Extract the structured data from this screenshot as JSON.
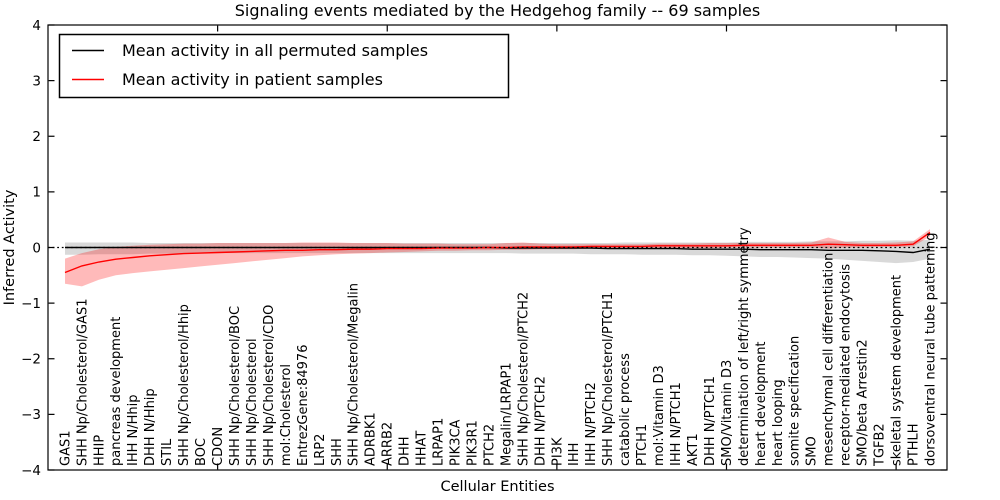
{
  "chart_data": {
    "type": "line",
    "title": "Signaling events mediated by the Hedgehog family -- 69 samples",
    "xlabel": "Cellular Entities",
    "ylabel": "Inferred Activity",
    "ylim": [
      -4,
      4
    ],
    "yticks": [
      4,
      3,
      2,
      1,
      0,
      -1,
      -2,
      -3,
      -4
    ],
    "x_major_tick_every": 10,
    "grid": false,
    "legend_position": "upper-left",
    "legend": [
      {
        "label": "Mean activity in all permuted samples",
        "color": "#000000"
      },
      {
        "label": "Mean activity in patient samples",
        "color": "#ff0000"
      }
    ],
    "zero_line": {
      "value": 0,
      "style": "dotted",
      "color": "#000000"
    },
    "categories": [
      "GAS1",
      "SHH Np/Cholesterol/GAS1",
      "HHIP",
      "pancreas development",
      "IHH N/Hhip",
      "DHH N/Hhip",
      "STIL",
      "SHH Np/Cholesterol/Hhip",
      "BOC",
      "CDON",
      "SHH Np/Cholesterol/BOC",
      "SHH Np/Cholesterol",
      "SHH Np/Cholesterol/CDO",
      "mol:Cholesterol",
      "EntrezGene:84976",
      "LRP2",
      "SHH",
      "SHH Np/Cholesterol/Megalin",
      "ADRBK1",
      "ARRB2",
      "DHH",
      "HHAT",
      "LRPAP1",
      "PIK3CA",
      "PIK3R1",
      "PTCH2",
      "Megalin/LRPAP1",
      "SHH Np/Cholesterol/PTCH2",
      "DHH N/PTCH2",
      "PI3K",
      "IHH",
      "IHH N/PTCH2",
      "SHH Np/Cholesterol/PTCH1",
      "catabolic process",
      "PTCH1",
      "mol:Vitamin D3",
      "IHH N/PTCH1",
      "AKT1",
      "DHH N/PTCH1",
      "SMO/Vitamin D3",
      "determination of left/right symmetry",
      "heart development",
      "heart looping",
      "somite specification",
      "SMO",
      "mesenchymal cell differentiation",
      "receptor-mediated endocytosis",
      "SMO/beta Arrestin2",
      "TGFB2",
      "skeletal system development",
      "PTHLH",
      "dorsoventral neural tube patterning"
    ],
    "series": [
      {
        "name": "Mean activity in all permuted samples",
        "color": "#000000",
        "band_color": "rgba(0,0,0,0.15)",
        "values": [
          0,
          0,
          0,
          0,
          0,
          0,
          0,
          0,
          0,
          0,
          0,
          0,
          0,
          0,
          0,
          0,
          0,
          0,
          0,
          0,
          0,
          0,
          0,
          0,
          0,
          0,
          -0.01,
          -0.01,
          -0.01,
          -0.01,
          -0.01,
          -0.01,
          -0.02,
          -0.02,
          -0.02,
          -0.02,
          -0.02,
          -0.03,
          -0.03,
          -0.03,
          -0.03,
          -0.04,
          -0.04,
          -0.04,
          -0.04,
          -0.05,
          -0.05,
          -0.05,
          -0.06,
          -0.07,
          -0.09,
          -0.03
        ],
        "band_low": [
          -0.13,
          -0.13,
          -0.12,
          -0.12,
          -0.12,
          -0.11,
          -0.11,
          -0.11,
          -0.1,
          -0.1,
          -0.1,
          -0.1,
          -0.1,
          -0.1,
          -0.1,
          -0.1,
          -0.1,
          -0.1,
          -0.1,
          -0.1,
          -0.1,
          -0.1,
          -0.1,
          -0.1,
          -0.1,
          -0.1,
          -0.1,
          -0.11,
          -0.11,
          -0.11,
          -0.11,
          -0.12,
          -0.12,
          -0.12,
          -0.13,
          -0.13,
          -0.13,
          -0.14,
          -0.14,
          -0.15,
          -0.16,
          -0.17,
          -0.17,
          -0.18,
          -0.19,
          -0.2,
          -0.22,
          -0.24,
          -0.26,
          -0.28,
          -0.26,
          -0.2
        ],
        "band_high": [
          0.09,
          0.09,
          0.09,
          0.09,
          0.09,
          0.08,
          0.08,
          0.08,
          0.08,
          0.08,
          0.08,
          0.08,
          0.08,
          0.08,
          0.08,
          0.08,
          0.08,
          0.08,
          0.08,
          0.08,
          0.08,
          0.08,
          0.08,
          0.08,
          0.08,
          0.08,
          0.08,
          0.08,
          0.08,
          0.08,
          0.08,
          0.08,
          0.08,
          0.09,
          0.09,
          0.09,
          0.09,
          0.09,
          0.09,
          0.09,
          0.1,
          0.1,
          0.1,
          0.1,
          0.11,
          0.11,
          0.11,
          0.12,
          0.12,
          0.13,
          0.12,
          0.14
        ]
      },
      {
        "name": "Mean activity in patient samples",
        "color": "#ff0000",
        "band_color": "rgba(255,0,0,0.27)",
        "values": [
          -0.45,
          -0.33,
          -0.26,
          -0.21,
          -0.18,
          -0.15,
          -0.13,
          -0.11,
          -0.1,
          -0.09,
          -0.08,
          -0.07,
          -0.06,
          -0.05,
          -0.05,
          -0.04,
          -0.04,
          -0.03,
          -0.03,
          -0.02,
          -0.02,
          -0.02,
          -0.01,
          -0.01,
          -0.01,
          0.0,
          0.0,
          0.01,
          0.01,
          0.01,
          0.01,
          0.02,
          0.02,
          0.02,
          0.02,
          0.03,
          0.03,
          0.03,
          0.03,
          0.03,
          0.04,
          0.04,
          0.04,
          0.04,
          0.04,
          0.06,
          0.05,
          0.04,
          0.04,
          0.04,
          0.06,
          0.27
        ],
        "band_low": [
          -0.65,
          -0.7,
          -0.58,
          -0.5,
          -0.46,
          -0.43,
          -0.4,
          -0.37,
          -0.34,
          -0.31,
          -0.28,
          -0.25,
          -0.22,
          -0.19,
          -0.16,
          -0.14,
          -0.12,
          -0.11,
          -0.1,
          -0.09,
          -0.08,
          -0.07,
          -0.06,
          -0.06,
          -0.05,
          -0.05,
          -0.04,
          -0.04,
          -0.03,
          -0.03,
          -0.03,
          -0.02,
          -0.02,
          -0.02,
          -0.02,
          -0.01,
          -0.01,
          -0.01,
          -0.01,
          0.0,
          0.0,
          0.0,
          0.0,
          0.0,
          0.0,
          -0.02,
          0.0,
          0.0,
          0.01,
          0.01,
          0.02,
          0.2
        ],
        "band_high": [
          -0.2,
          -0.1,
          -0.03,
          0.01,
          0.03,
          0.05,
          0.06,
          0.07,
          0.07,
          0.08,
          0.08,
          0.08,
          0.08,
          0.08,
          0.09,
          0.09,
          0.09,
          0.08,
          0.08,
          0.08,
          0.07,
          0.07,
          0.07,
          0.06,
          0.06,
          0.06,
          0.08,
          0.09,
          0.07,
          0.06,
          0.06,
          0.06,
          0.06,
          0.06,
          0.06,
          0.07,
          0.07,
          0.07,
          0.08,
          0.08,
          0.08,
          0.08,
          0.08,
          0.08,
          0.09,
          0.18,
          0.1,
          0.08,
          0.08,
          0.09,
          0.11,
          0.33
        ]
      }
    ]
  }
}
